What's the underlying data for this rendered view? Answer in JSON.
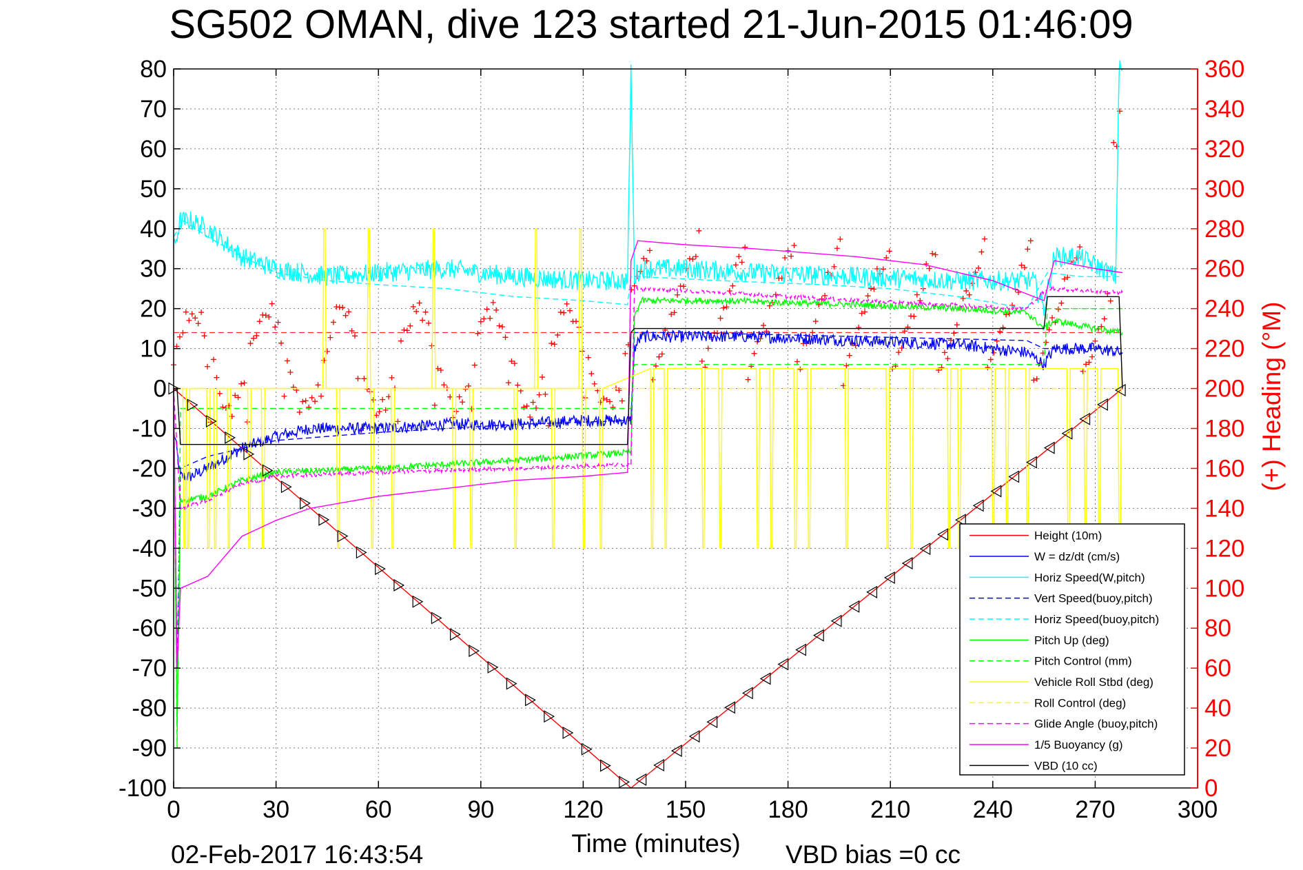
{
  "chart_data": {
    "type": "line",
    "title": "SG502 OMAN, dive 123 started 21-Jun-2015 01:46:09",
    "xlabel": "Time (minutes)",
    "ylabel_right": "(+) Heading (°M)",
    "footer_date": "02-Feb-2017 16:43:54",
    "footer_bias": "VBD bias =0 cc",
    "xlim": [
      0,
      300
    ],
    "ylim": [
      -100,
      80
    ],
    "ylim_right": [
      0,
      360
    ],
    "xticks": [
      "0",
      "30",
      "60",
      "90",
      "120",
      "150",
      "180",
      "210",
      "240",
      "270",
      "300"
    ],
    "yticks": [
      "80",
      "70",
      "60",
      "50",
      "40",
      "30",
      "20",
      "10",
      "0",
      "-10",
      "-20",
      "-30",
      "-40",
      "-50",
      "-60",
      "-70",
      "-80",
      "-90",
      "-100"
    ],
    "yticks_right": [
      "360",
      "340",
      "320",
      "300",
      "280",
      "260",
      "240",
      "220",
      "200",
      "180",
      "160",
      "140",
      "120",
      "100",
      "80",
      "60",
      "40",
      "20",
      "0"
    ],
    "grid": true,
    "legend_position": "bottom-right",
    "series": [
      {
        "name": "Height (10m)",
        "color": "#ff0000",
        "style": "solid",
        "marker": "triangle",
        "x": [
          0,
          134,
          278
        ],
        "y": [
          0,
          -100,
          0
        ]
      },
      {
        "name": "W = dz/dt (cm/s)",
        "color": "#0000ff",
        "style": "solid",
        "x": [
          0,
          2,
          5,
          10,
          20,
          30,
          40,
          60,
          80,
          100,
          120,
          134,
          135,
          137,
          150,
          170,
          200,
          230,
          250,
          255,
          258,
          270,
          278
        ],
        "y": [
          -10,
          -22,
          -22,
          -20,
          -15,
          -12,
          -10,
          -10,
          -9,
          -9,
          -8,
          -8,
          10,
          13,
          13,
          13,
          12,
          11,
          9,
          6,
          10,
          10,
          9
        ]
      },
      {
        "name": "Horiz Speed(W,pitch)",
        "color": "#00ffff",
        "style": "solid",
        "x": [
          0,
          2,
          5,
          10,
          20,
          30,
          45,
          60,
          80,
          100,
          120,
          133,
          134,
          135,
          137,
          150,
          170,
          200,
          230,
          252,
          255,
          258,
          265,
          272,
          276,
          277,
          278
        ],
        "y": [
          35,
          42,
          42,
          40,
          33,
          30,
          28,
          29,
          30,
          28,
          27,
          27,
          80,
          28,
          30,
          30,
          29,
          28,
          27,
          27,
          20,
          33,
          33,
          30,
          28,
          80,
          80
        ]
      },
      {
        "name": "Vert Speed(buoy,pitch)",
        "color": "#0000ff",
        "style": "dashed",
        "x": [
          0,
          1,
          2,
          10,
          30,
          60,
          100,
          134,
          135,
          150,
          200,
          250,
          255,
          278
        ],
        "y": [
          0,
          -70,
          -20,
          -17,
          -13,
          -11,
          -9,
          -8,
          14,
          14,
          13,
          12,
          10,
          10
        ]
      },
      {
        "name": "Horiz Speed(buoy,pitch)",
        "color": "#00ffff",
        "style": "dashed",
        "x": [
          0,
          3,
          10,
          20,
          30,
          45,
          60,
          80,
          100,
          120,
          133,
          134,
          137,
          160,
          190,
          210,
          230,
          250,
          256,
          266,
          278
        ],
        "y": [
          38,
          42,
          38,
          33,
          29,
          27,
          26,
          25,
          23,
          22,
          21,
          28,
          28,
          27,
          26,
          25,
          23,
          20,
          29,
          28,
          28
        ]
      },
      {
        "name": "Pitch Up (deg)",
        "color": "#00ff00",
        "style": "solid",
        "x": [
          0,
          1,
          2,
          10,
          20,
          30,
          60,
          100,
          134,
          135,
          137,
          160,
          200,
          230,
          250,
          255,
          258,
          270,
          278
        ],
        "y": [
          0,
          -85,
          -28,
          -27,
          -23,
          -21,
          -20,
          -18,
          -16,
          18,
          22,
          22,
          21,
          20,
          19,
          15,
          17,
          15,
          14
        ]
      },
      {
        "name": "Pitch Control (mm)",
        "color": "#00ff00",
        "style": "dashed",
        "x": [
          0,
          1,
          2,
          134,
          135,
          255,
          256,
          278
        ],
        "y": [
          0,
          -90,
          -5,
          -5,
          6,
          6,
          20,
          20
        ]
      },
      {
        "name": "Vehicle Roll Stbd (deg)",
        "color": "#ffff00",
        "style": "solid",
        "x": [
          0,
          10,
          30,
          60,
          90,
          120,
          134,
          135,
          160,
          200,
          240,
          255,
          270,
          278
        ],
        "y": [
          0,
          0,
          0,
          0,
          0,
          0,
          0,
          5,
          5,
          5,
          5,
          5,
          5,
          5
        ]
      },
      {
        "name": "Roll Control (deg)",
        "color": "#ffff00",
        "style": "dashed",
        "x": [
          0,
          134,
          135,
          278
        ],
        "y": [
          0,
          0,
          0,
          0
        ]
      },
      {
        "name": "Glide Angle (buoy,pitch)",
        "color": "#ff00ff",
        "style": "dashed",
        "x": [
          0,
          2,
          10,
          20,
          30,
          60,
          100,
          134,
          135,
          160,
          200,
          250,
          256,
          278
        ],
        "y": [
          0,
          -30,
          -28,
          -24,
          -22,
          -21,
          -20,
          -19,
          25,
          24,
          22,
          20,
          25,
          24
        ]
      },
      {
        "name": "1/5 Buoyancy (g)",
        "color": "#ff00ff",
        "style": "solid",
        "x": [
          0,
          1,
          2,
          10,
          15,
          20,
          30,
          40,
          60,
          80,
          100,
          120,
          133,
          134,
          136,
          150,
          170,
          200,
          220,
          240,
          255,
          258,
          270,
          278
        ],
        "y": [
          0,
          -70,
          -50,
          -47,
          -42,
          -37,
          -33,
          -30,
          -27,
          -25,
          -23,
          -22,
          -21,
          32,
          37,
          36,
          35,
          33,
          31,
          27,
          22,
          32,
          30,
          29
        ]
      },
      {
        "name": "VBD (10 cc)",
        "color": "#000000",
        "style": "solid",
        "x": [
          0,
          1,
          2,
          133,
          134,
          135,
          255,
          256,
          277,
          278
        ],
        "y": [
          0,
          0,
          -14,
          -14,
          14,
          15,
          15,
          23,
          23,
          0
        ]
      }
    ]
  }
}
